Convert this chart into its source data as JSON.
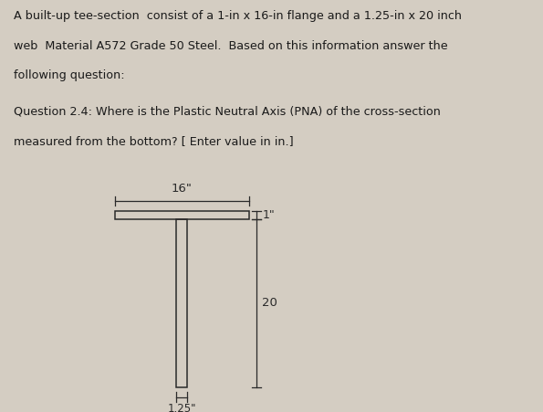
{
  "title_line1": "A built-up tee-section  consist of a 1-in x 16-in flange and a 1.25-in x 20 inch",
  "title_line2": "web  Material A572 Grade 50 Steel.  Based on this information answer the",
  "title_line3": "following question:",
  "question_line1": "Question 2.4: Where is the Plastic Neutral Axis (PNA) of the cross-section",
  "question_line2": "measured from the bottom? [ Enter value in in.]",
  "bg_color": "#d4cdc2",
  "text_color": "#1a1a1a",
  "dim_16": "16\"",
  "dim_1": "1\"",
  "dim_20": "20",
  "dim_125": "1.25\""
}
